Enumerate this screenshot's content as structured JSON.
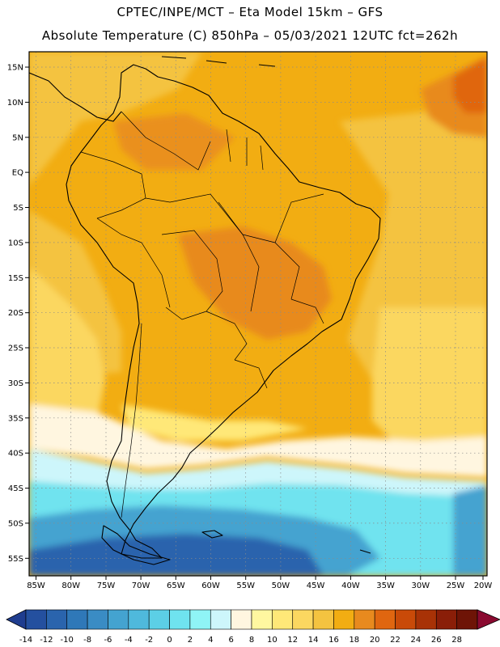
{
  "header": {
    "line1": "CPTEC/INPE/MCT –  Eta Model 15km – GFS",
    "line2": "Absolute Temperature (C) 850hPa – 05/03/2021 12UTC fct=262h"
  },
  "map": {
    "region": "South America",
    "lat_labels": [
      "15N",
      "10N",
      "5N",
      "EQ",
      "5S",
      "10S",
      "15S",
      "20S",
      "25S",
      "30S",
      "35S",
      "40S",
      "45S",
      "50S",
      "55S"
    ],
    "lon_labels": [
      "85W",
      "80W",
      "75W",
      "70W",
      "65W",
      "60W",
      "55W",
      "50W",
      "45W",
      "40W",
      "35W",
      "30W",
      "25W",
      "20W"
    ],
    "lat_range": [
      -57.5,
      16.5
    ],
    "lon_range": [
      -85.5,
      -20
    ]
  },
  "colorbar": {
    "tick_labels": [
      "-14",
      "-12",
      "-10",
      "-8",
      "-6",
      "-4",
      "-2",
      "0",
      "2",
      "4",
      "6",
      "8",
      "10",
      "12",
      "14",
      "16",
      "18",
      "20",
      "22",
      "24",
      "26",
      "28"
    ],
    "colors": [
      "#1f3d8f",
      "#24509f",
      "#2a64ad",
      "#2f78b8",
      "#3a8cc4",
      "#44a3d0",
      "#4fb9dc",
      "#5ccfe6",
      "#6fe3ef",
      "#8ff4f6",
      "#cdf6fb",
      "#fff6e0",
      "#fff7a0",
      "#ffe878",
      "#fbd760",
      "#f4c340",
      "#f2ad12",
      "#e88a1e",
      "#e06610",
      "#c94a08",
      "#a83206",
      "#8a1e08",
      "#6e1406",
      "#8a0a30"
    ]
  },
  "colors": {
    "warm_main": "#f2ad12",
    "warm_hot": "#e88a1e",
    "warm_hotter": "#e06610",
    "light_orange": "#f4c340",
    "yellow": "#fbd760",
    "pale_yellow": "#ffe878",
    "cream": "#fff6e0",
    "pale_cyan": "#cdf6fb",
    "cyan": "#6fe3ef",
    "mid_blue": "#44a3d0",
    "deep_blue": "#2a64ad"
  }
}
